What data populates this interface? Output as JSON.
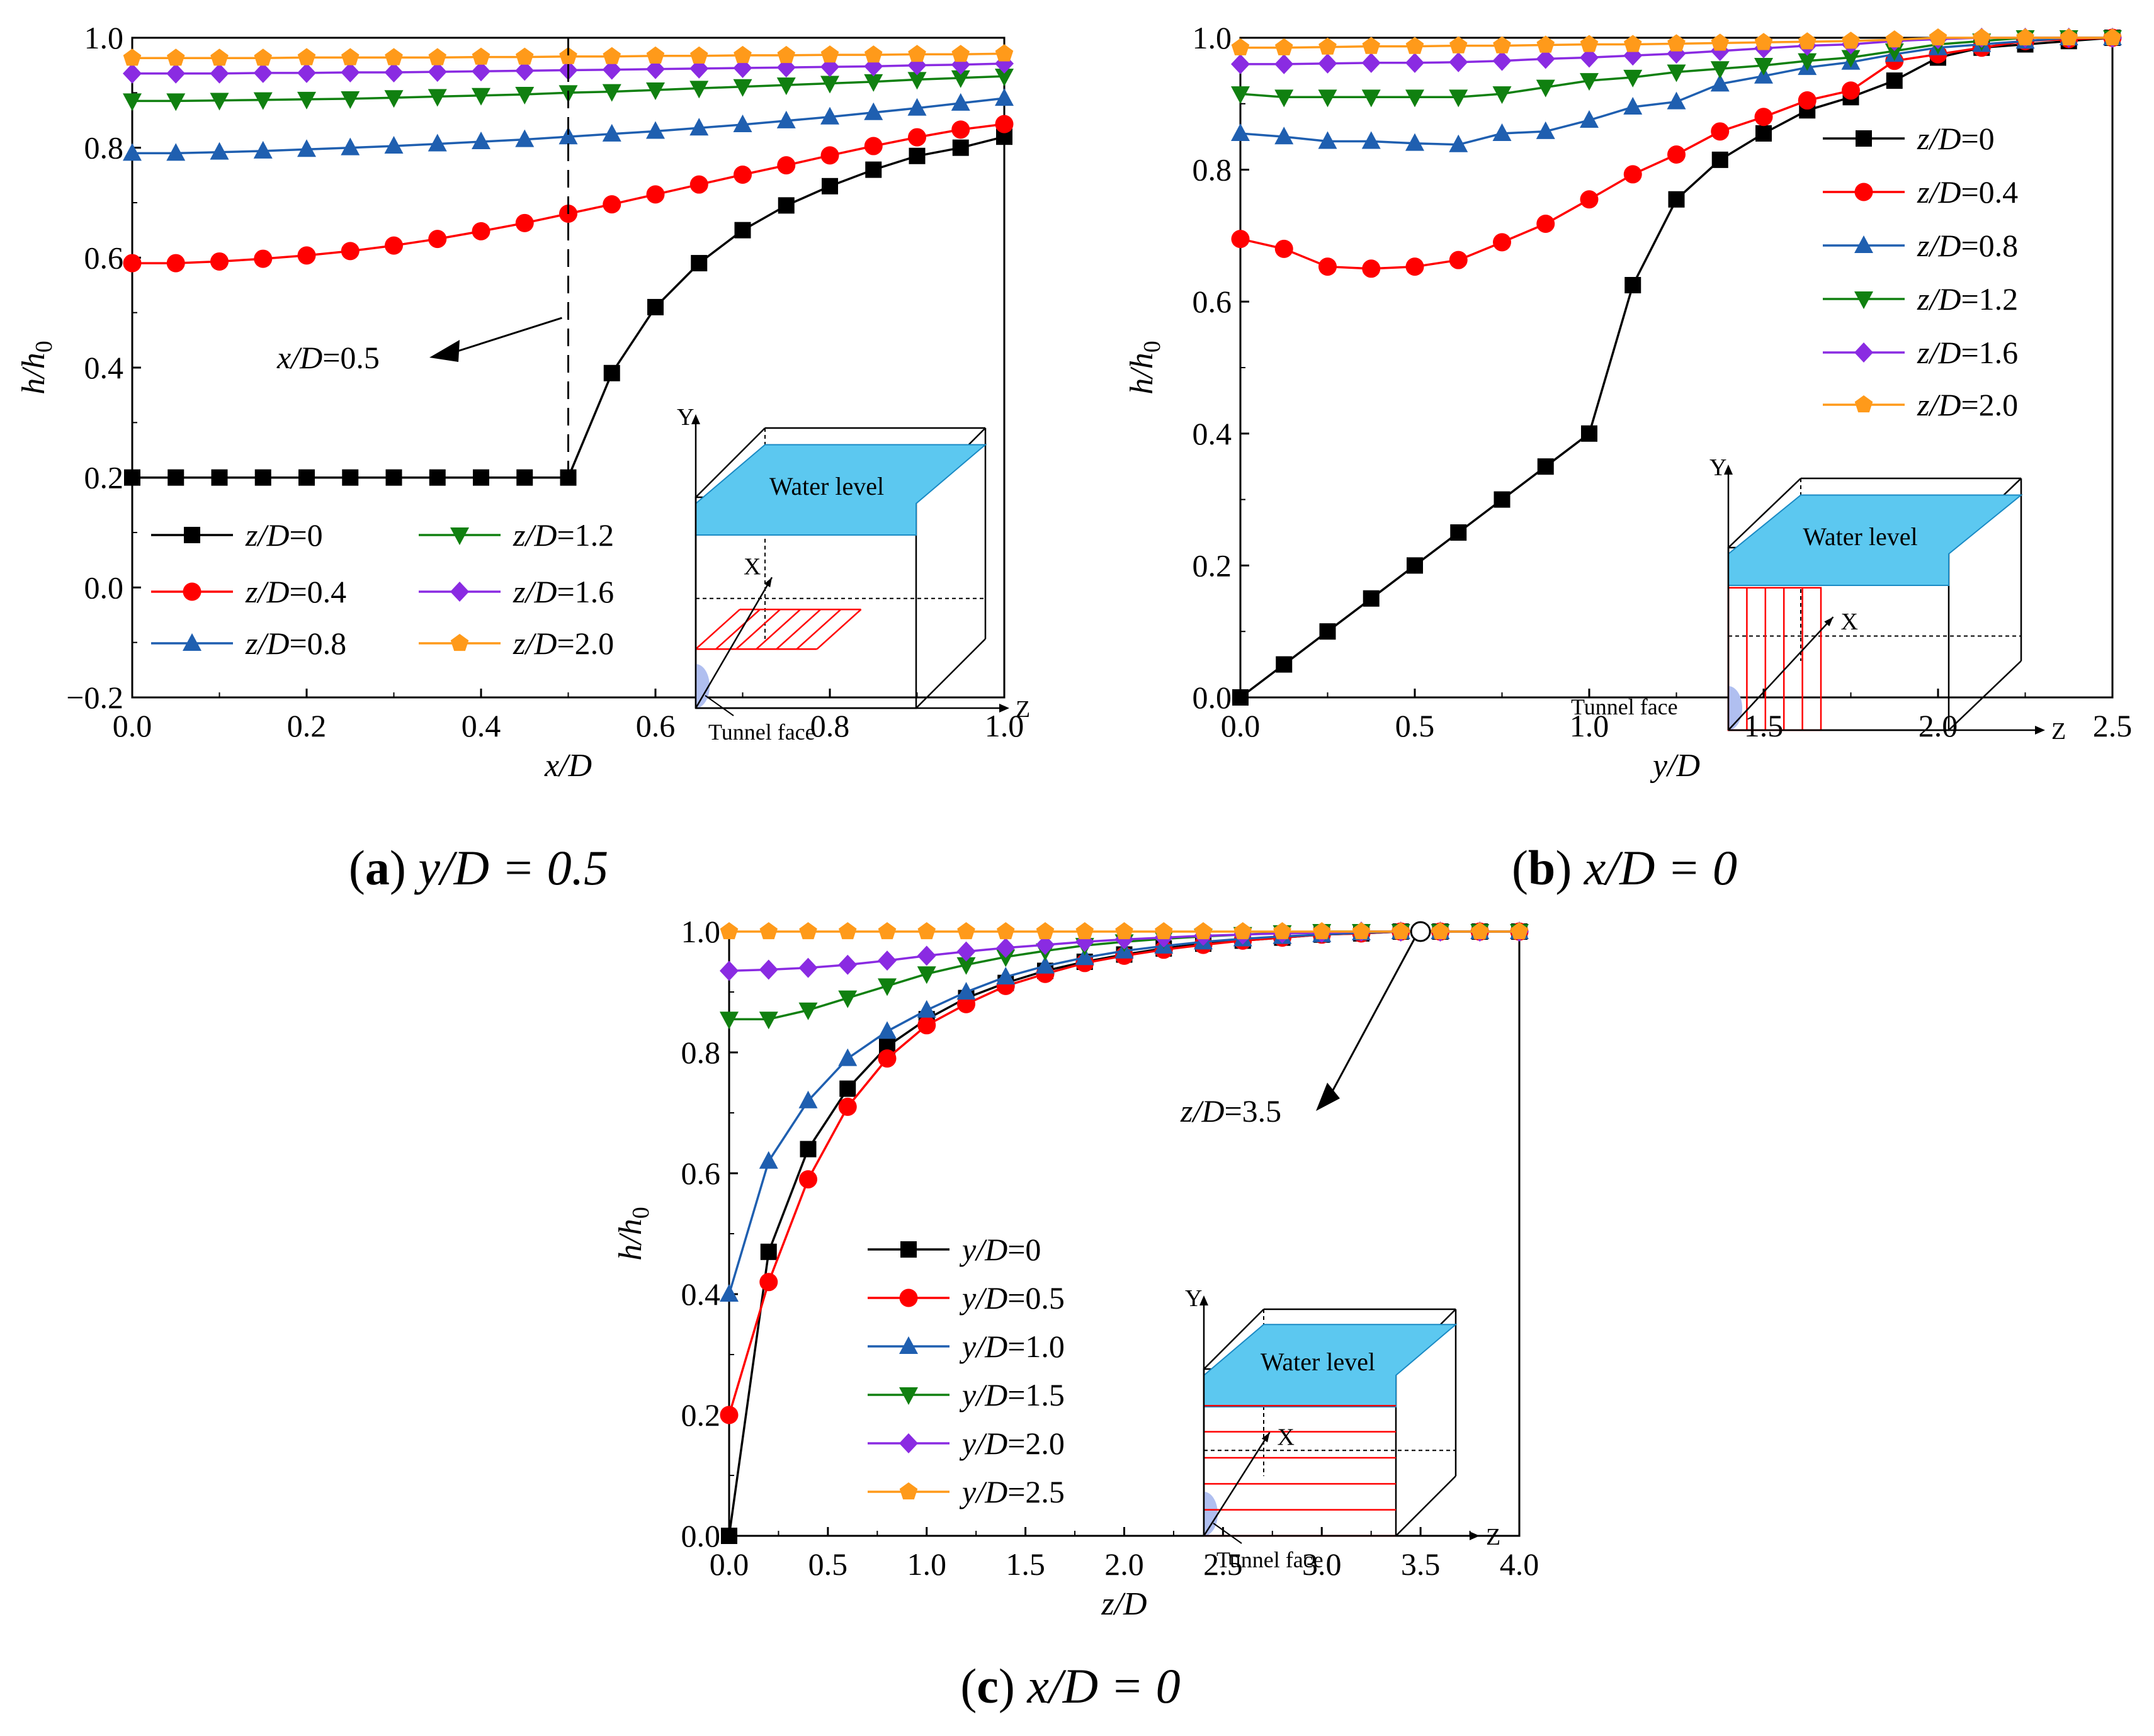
{
  "figure": {
    "captions": [
      {
        "letter": "a",
        "condition": "y/D = 0.5"
      },
      {
        "letter": "b",
        "condition": "x/D = 0"
      },
      {
        "letter": "c",
        "condition": "x/D = 0"
      }
    ]
  },
  "colors": {
    "black": "#000000",
    "red": "#ff0000",
    "blue": "#1f5fb0",
    "green": "#108010",
    "purple": "#8a2be2",
    "orange": "#ff9a1a",
    "water": "#5cc8f0",
    "face": "#b0bff0"
  },
  "chart_data": [
    {
      "type": "line",
      "xlabel": "x/D",
      "ylabel": "h/h0",
      "xlim": [
        0,
        1.0
      ],
      "ylim": [
        -0.2,
        1.0
      ],
      "x_ticks": [
        "0.0",
        "0.2",
        "0.4",
        "0.6",
        "0.8",
        "1.0"
      ],
      "y_ticks": [
        "−0.2",
        "0.0",
        "0.2",
        "0.4",
        "0.6",
        "0.8",
        "1.0"
      ],
      "x_tick_values": [
        0,
        0.2,
        0.4,
        0.6,
        0.8,
        1.0
      ],
      "y_tick_values": [
        -0.2,
        0,
        0.2,
        0.4,
        0.6,
        0.8,
        1.0
      ],
      "legend": "bottom-left, two columns",
      "x": [
        0,
        0.05,
        0.1,
        0.15,
        0.2,
        0.25,
        0.3,
        0.35,
        0.4,
        0.45,
        0.5,
        0.55,
        0.6,
        0.65,
        0.7,
        0.75,
        0.8,
        0.85,
        0.9,
        0.95,
        1.0
      ],
      "series": [
        {
          "name": "z/D=0",
          "marker": "square",
          "color": "black",
          "values": [
            0.2,
            0.2,
            0.2,
            0.2,
            0.2,
            0.2,
            0.2,
            0.2,
            0.2,
            0.2,
            0.2,
            0.39,
            0.51,
            0.59,
            0.65,
            0.695,
            0.73,
            0.76,
            0.785,
            0.8,
            0.82
          ]
        },
        {
          "name": "z/D=0.4",
          "marker": "circle",
          "color": "red",
          "values": [
            0.59,
            0.59,
            0.593,
            0.598,
            0.604,
            0.612,
            0.622,
            0.634,
            0.648,
            0.663,
            0.68,
            0.697,
            0.715,
            0.733,
            0.751,
            0.768,
            0.786,
            0.803,
            0.819,
            0.833,
            0.843
          ]
        },
        {
          "name": "z/D=0.8",
          "marker": "triangle-up",
          "color": "blue",
          "values": [
            0.79,
            0.79,
            0.792,
            0.794,
            0.797,
            0.8,
            0.803,
            0.807,
            0.811,
            0.815,
            0.82,
            0.825,
            0.83,
            0.836,
            0.842,
            0.849,
            0.856,
            0.864,
            0.872,
            0.881,
            0.89
          ]
        },
        {
          "name": "z/D=1.2",
          "marker": "triangle-down",
          "color": "green",
          "values": [
            0.885,
            0.885,
            0.886,
            0.887,
            0.888,
            0.889,
            0.891,
            0.893,
            0.895,
            0.897,
            0.9,
            0.902,
            0.905,
            0.908,
            0.911,
            0.914,
            0.917,
            0.92,
            0.924,
            0.927,
            0.93
          ]
        },
        {
          "name": "z/D=1.6",
          "marker": "diamond",
          "color": "purple",
          "values": [
            0.935,
            0.935,
            0.935,
            0.936,
            0.936,
            0.937,
            0.937,
            0.938,
            0.939,
            0.94,
            0.941,
            0.942,
            0.943,
            0.944,
            0.945,
            0.946,
            0.947,
            0.948,
            0.95,
            0.951,
            0.953
          ]
        },
        {
          "name": "z/D=2.0",
          "marker": "pentagon",
          "color": "orange",
          "values": [
            0.963,
            0.963,
            0.963,
            0.963,
            0.964,
            0.964,
            0.964,
            0.964,
            0.965,
            0.965,
            0.966,
            0.966,
            0.967,
            0.967,
            0.968,
            0.968,
            0.969,
            0.969,
            0.97,
            0.97,
            0.971
          ]
        }
      ],
      "annotation": {
        "text": "x/D=0.5",
        "x": 0.5
      },
      "inset": {
        "water_label": "Water level",
        "face_label": "Tunnel face",
        "axis_y": "Y",
        "axis_x": "X",
        "axis_z": "Z"
      }
    },
    {
      "type": "line",
      "xlabel": "y/D",
      "ylabel": "h/h0",
      "xlim": [
        0,
        2.5
      ],
      "ylim": [
        0,
        1.0
      ],
      "x_ticks": [
        "0.0",
        "0.5",
        "1.0",
        "1.5",
        "2.0",
        "2.5"
      ],
      "y_ticks": [
        "0.0",
        "0.2",
        "0.4",
        "0.6",
        "0.8",
        "1.0"
      ],
      "x_tick_values": [
        0,
        0.5,
        1.0,
        1.5,
        2.0,
        2.5
      ],
      "y_tick_values": [
        0,
        0.2,
        0.4,
        0.6,
        0.8,
        1.0
      ],
      "legend": "right, single column",
      "x": [
        0,
        0.125,
        0.25,
        0.375,
        0.5,
        0.625,
        0.75,
        0.875,
        1.0,
        1.125,
        1.25,
        1.375,
        1.5,
        1.625,
        1.75,
        1.875,
        2.0,
        2.125,
        2.25,
        2.375,
        2.5
      ],
      "series": [
        {
          "name": "z/D=0",
          "marker": "square",
          "color": "black",
          "values": [
            0.0,
            0.05,
            0.1,
            0.15,
            0.2,
            0.25,
            0.3,
            0.35,
            0.4,
            0.625,
            0.755,
            0.815,
            0.855,
            0.89,
            0.91,
            0.935,
            0.97,
            0.985,
            0.99,
            0.995,
            1.0
          ]
        },
        {
          "name": "z/D=0.4",
          "marker": "circle",
          "color": "red",
          "values": [
            0.695,
            0.68,
            0.653,
            0.65,
            0.653,
            0.663,
            0.69,
            0.718,
            0.755,
            0.793,
            0.823,
            0.858,
            0.88,
            0.905,
            0.92,
            0.965,
            0.975,
            0.985,
            0.995,
            0.998,
            1.0
          ]
        },
        {
          "name": "z/D=0.8",
          "marker": "triangle-up",
          "color": "blue",
          "values": [
            0.855,
            0.85,
            0.843,
            0.843,
            0.84,
            0.838,
            0.855,
            0.858,
            0.875,
            0.895,
            0.903,
            0.93,
            0.942,
            0.955,
            0.963,
            0.975,
            0.985,
            0.99,
            0.995,
            1.0,
            1.0
          ]
        },
        {
          "name": "z/D=1.2",
          "marker": "triangle-down",
          "color": "green",
          "values": [
            0.915,
            0.91,
            0.91,
            0.91,
            0.91,
            0.91,
            0.915,
            0.925,
            0.935,
            0.94,
            0.948,
            0.953,
            0.958,
            0.965,
            0.97,
            0.98,
            0.99,
            0.995,
            1.0,
            1.0,
            1.0
          ]
        },
        {
          "name": "z/D=1.6",
          "marker": "diamond",
          "color": "purple",
          "values": [
            0.96,
            0.96,
            0.961,
            0.962,
            0.962,
            0.963,
            0.965,
            0.968,
            0.97,
            0.973,
            0.976,
            0.98,
            0.984,
            0.988,
            0.99,
            0.995,
            0.998,
            1.0,
            1.0,
            1.0,
            1.0
          ]
        },
        {
          "name": "z/D=2.0",
          "marker": "pentagon",
          "color": "orange",
          "values": [
            0.985,
            0.985,
            0.986,
            0.987,
            0.987,
            0.988,
            0.988,
            0.989,
            0.99,
            0.99,
            0.991,
            0.992,
            0.993,
            0.994,
            0.995,
            0.997,
            1.0,
            1.0,
            1.0,
            1.0,
            1.0
          ]
        }
      ],
      "inset": {
        "water_label": "Water level",
        "face_label": "Tunnel face",
        "axis_y": "Y",
        "axis_x": "X",
        "axis_z": "Z"
      }
    },
    {
      "type": "line",
      "xlabel": "z/D",
      "ylabel": "h/h0",
      "xlim": [
        0,
        4.0
      ],
      "ylim": [
        0,
        1.0
      ],
      "x_ticks": [
        "0.0",
        "0.5",
        "1.0",
        "1.5",
        "2.0",
        "2.5",
        "3.0",
        "3.5",
        "4.0"
      ],
      "y_ticks": [
        "0.0",
        "0.2",
        "0.4",
        "0.6",
        "0.8",
        "1.0"
      ],
      "x_tick_values": [
        0,
        0.5,
        1.0,
        1.5,
        2.0,
        2.5,
        3.0,
        3.5,
        4.0
      ],
      "y_tick_values": [
        0,
        0.2,
        0.4,
        0.6,
        0.8,
        1.0
      ],
      "legend": "left, single column",
      "x": [
        0,
        0.2,
        0.4,
        0.6,
        0.8,
        1.0,
        1.2,
        1.4,
        1.6,
        1.8,
        2.0,
        2.2,
        2.4,
        2.6,
        2.8,
        3.0,
        3.2,
        3.4,
        3.6,
        3.8,
        4.0
      ],
      "series": [
        {
          "name": "y/D=0",
          "marker": "square",
          "color": "black",
          "values": [
            0.0,
            0.47,
            0.64,
            0.74,
            0.81,
            0.855,
            0.89,
            0.915,
            0.935,
            0.95,
            0.962,
            0.972,
            0.98,
            0.985,
            0.99,
            0.995,
            0.997,
            1.0,
            1.0,
            1.0,
            1.0
          ]
        },
        {
          "name": "y/D=0.5",
          "marker": "circle",
          "color": "red",
          "values": [
            0.2,
            0.42,
            0.59,
            0.71,
            0.79,
            0.845,
            0.88,
            0.91,
            0.93,
            0.948,
            0.96,
            0.97,
            0.978,
            0.985,
            0.99,
            0.995,
            0.997,
            1.0,
            1.0,
            1.0,
            1.0
          ]
        },
        {
          "name": "y/D=1.0",
          "marker": "triangle-up",
          "color": "blue",
          "values": [
            0.4,
            0.62,
            0.72,
            0.79,
            0.835,
            0.87,
            0.9,
            0.925,
            0.943,
            0.957,
            0.968,
            0.976,
            0.983,
            0.988,
            0.992,
            0.995,
            0.998,
            1.0,
            1.0,
            1.0,
            1.0
          ]
        },
        {
          "name": "y/D=1.5",
          "marker": "triangle-down",
          "color": "green",
          "values": [
            0.855,
            0.855,
            0.87,
            0.89,
            0.91,
            0.93,
            0.945,
            0.958,
            0.968,
            0.977,
            0.983,
            0.988,
            0.992,
            0.995,
            0.998,
            1.0,
            1.0,
            1.0,
            1.0,
            1.0,
            1.0
          ]
        },
        {
          "name": "y/D=2.0",
          "marker": "diamond",
          "color": "purple",
          "values": [
            0.935,
            0.937,
            0.94,
            0.945,
            0.952,
            0.96,
            0.967,
            0.973,
            0.978,
            0.983,
            0.987,
            0.99,
            0.993,
            0.995,
            0.997,
            0.998,
            1.0,
            1.0,
            1.0,
            1.0,
            1.0
          ]
        },
        {
          "name": "y/D=2.5",
          "marker": "pentagon",
          "color": "orange",
          "values": [
            1.0,
            1.0,
            1.0,
            1.0,
            1.0,
            1.0,
            1.0,
            1.0,
            1.0,
            1.0,
            1.0,
            1.0,
            1.0,
            1.0,
            1.0,
            1.0,
            1.0,
            1.0,
            1.0,
            1.0,
            1.0
          ]
        }
      ],
      "annotation": {
        "text": "z/D=3.5",
        "x": 3.5,
        "y": 1.0
      },
      "inset": {
        "water_label": "Water level",
        "face_label": "Tunnel face",
        "axis_y": "Y",
        "axis_x": "X",
        "axis_z": "Z"
      }
    }
  ]
}
